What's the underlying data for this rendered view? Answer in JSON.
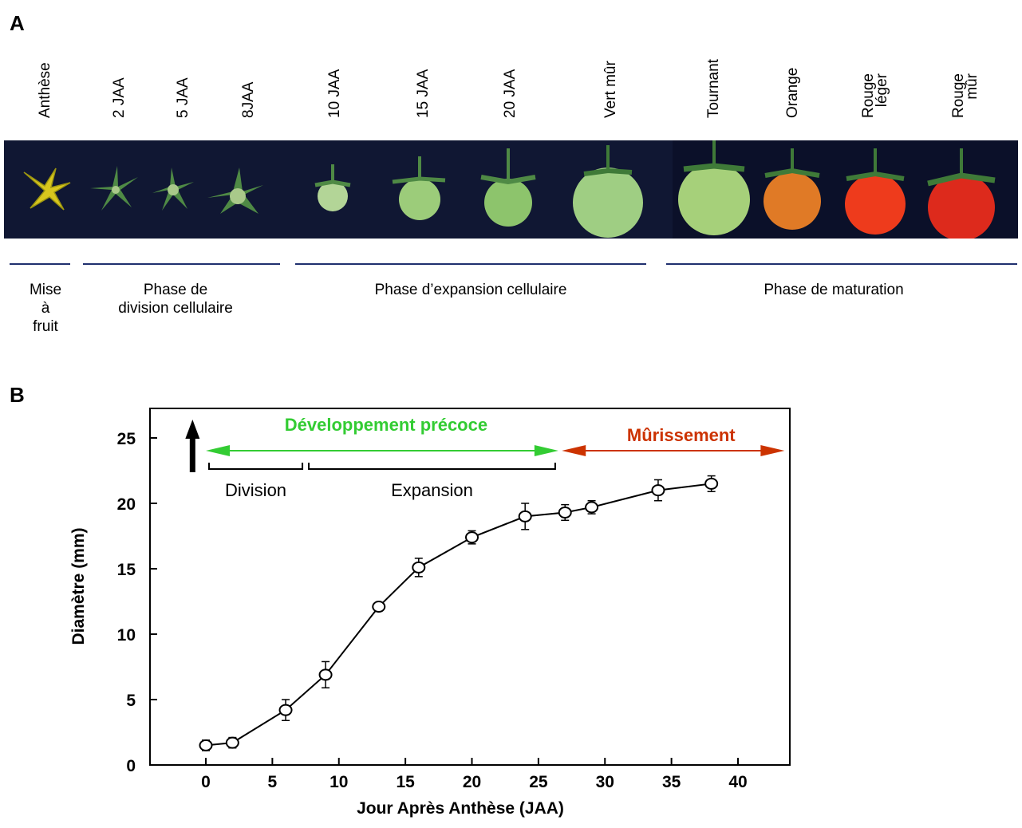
{
  "panel_a": {
    "letter": "A",
    "stages": [
      {
        "label": "Anthèse"
      },
      {
        "label": "2 JAA"
      },
      {
        "label": "5 JAA"
      },
      {
        "label": "8JAA"
      },
      {
        "label": "10 JAA"
      },
      {
        "label": "15 JAA"
      },
      {
        "label": "20 JAA"
      },
      {
        "label": "Vert mûr"
      },
      {
        "label": "Tournant"
      },
      {
        "label": "Orange"
      },
      {
        "label": "Rouge\nléger"
      },
      {
        "label": "Rouge\nmûr"
      }
    ],
    "phases": [
      {
        "label": "Mise\nà\nfruit"
      },
      {
        "label": "Phase de\ndivision cellulaire"
      },
      {
        "label": "Phase d’expansion cellulaire"
      },
      {
        "label": "Phase de maturation"
      }
    ],
    "colors": {
      "background": "#101733",
      "phase_line": "#1f2f6e"
    }
  },
  "panel_b": {
    "letter": "B",
    "chart_data": {
      "type": "line",
      "xlabel": "Jour Après  Anthèse  (JAA)",
      "ylabel": "Diamètre (mm)",
      "xlim": [
        -4,
        44
      ],
      "ylim": [
        0,
        27
      ],
      "xticks": [
        0,
        5,
        10,
        15,
        20,
        25,
        30,
        35,
        40
      ],
      "yticks": [
        0,
        5,
        10,
        15,
        20,
        25
      ],
      "grid": false,
      "series": [
        {
          "x": [
            0,
            2,
            6,
            9,
            13,
            16,
            20,
            24,
            27,
            29,
            34,
            38
          ],
          "y": [
            1.5,
            1.7,
            4.2,
            6.9,
            12.1,
            15.1,
            17.4,
            19.0,
            19.3,
            19.7,
            21.0,
            21.5
          ],
          "err": [
            0.4,
            0.4,
            0.8,
            1.0,
            0.2,
            0.7,
            0.5,
            1.0,
            0.6,
            0.5,
            0.8,
            0.6
          ]
        }
      ],
      "annotations": {
        "early_development": {
          "text": "Développement  précoce",
          "x_from": 0,
          "x_to": 26.5,
          "color": "#33cc33"
        },
        "ripening": {
          "text": "Mûrissement",
          "x_from": 27,
          "x_to": 43.5,
          "color": "#cc3300"
        },
        "division": {
          "text": "Division",
          "x_from": 0,
          "x_to": 7.5
        },
        "expansion": {
          "text": "Expansion",
          "x_from": 7.5,
          "x_to": 26.5
        },
        "anthesis_arrow": {
          "x": -1
        }
      }
    }
  }
}
